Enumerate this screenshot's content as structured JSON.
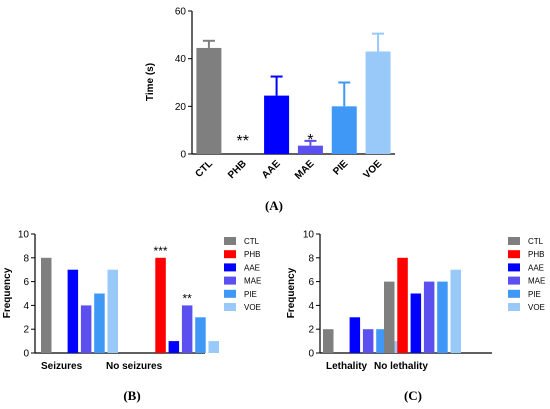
{
  "colors": {
    "CTL": "#7f7f7f",
    "PHB": "#ff0000",
    "AAE": "#0000ff",
    "MAE": "#5b4ff0",
    "PIE": "#3f98f5",
    "VOE": "#99c9f9"
  },
  "chart_data": [
    {
      "type": "bar",
      "panel_label": "(A)",
      "categories": [
        "CTL",
        "PHB",
        "AAE",
        "MAE",
        "PIE",
        "VOE"
      ],
      "values": [
        44.5,
        0,
        24.5,
        3.5,
        20,
        43
      ],
      "errors": [
        3,
        0,
        8,
        2,
        10,
        7.5
      ],
      "significance": [
        "",
        "**",
        "",
        "*",
        "",
        ""
      ],
      "ylabel": "Time (s)",
      "xlabel": "",
      "ylim": [
        0,
        60
      ],
      "yticks": [
        0,
        20,
        40,
        60
      ]
    },
    {
      "type": "bar",
      "panel_label": "(B)",
      "categories": [
        "Seizures",
        "No seizures"
      ],
      "series": [
        {
          "name": "CTL",
          "values": [
            8,
            0
          ]
        },
        {
          "name": "PHB",
          "values": [
            0,
            8
          ]
        },
        {
          "name": "AAE",
          "values": [
            7,
            1
          ]
        },
        {
          "name": "MAE",
          "values": [
            4,
            4
          ]
        },
        {
          "name": "PIE",
          "values": [
            5,
            3
          ]
        },
        {
          "name": "VOE",
          "values": [
            7,
            1
          ]
        }
      ],
      "annotations": [
        {
          "category": "No seizures",
          "series": "PHB",
          "text": "***"
        },
        {
          "category": "No seizures",
          "series": "MAE",
          "text": "**"
        }
      ],
      "ylabel": "Frequency",
      "xlabel": "",
      "ylim": [
        0,
        10
      ],
      "yticks": [
        0,
        2,
        4,
        6,
        8,
        10
      ],
      "legend": "right"
    },
    {
      "type": "bar",
      "panel_label": "(C)",
      "categories": [
        "Lethality",
        "No lethality"
      ],
      "series": [
        {
          "name": "CTL",
          "values": [
            2,
            6
          ]
        },
        {
          "name": "PHB",
          "values": [
            0,
            8
          ]
        },
        {
          "name": "AAE",
          "values": [
            3,
            5
          ]
        },
        {
          "name": "MAE",
          "values": [
            2,
            6
          ]
        },
        {
          "name": "PIE",
          "values": [
            2,
            6
          ]
        },
        {
          "name": "VOE",
          "values": [
            1,
            7
          ]
        }
      ],
      "annotations": [],
      "ylabel": "Frequency",
      "xlabel": "",
      "ylim": [
        0,
        10
      ],
      "yticks": [
        0,
        2,
        4,
        6,
        8,
        10
      ],
      "legend": "right"
    }
  ]
}
